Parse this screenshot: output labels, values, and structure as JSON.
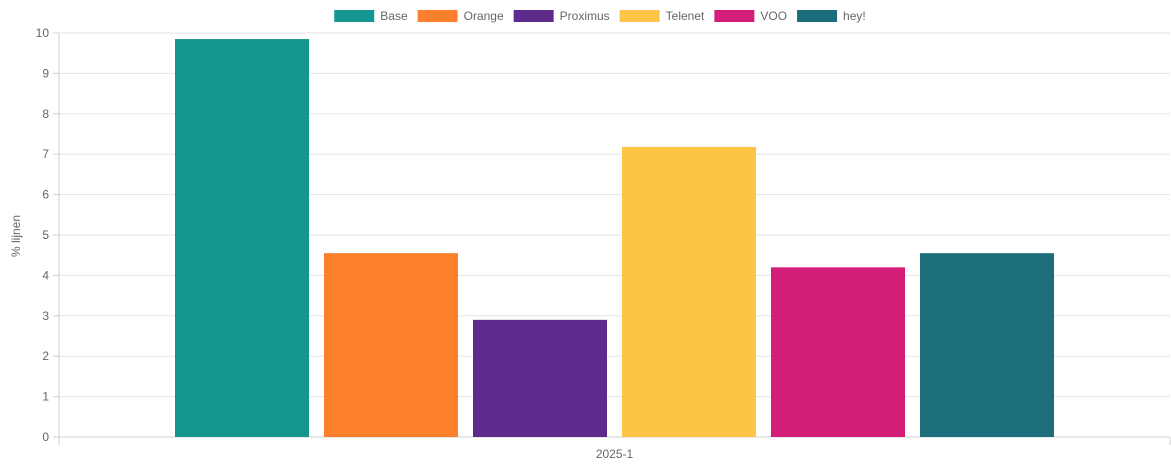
{
  "chart_data": {
    "type": "bar",
    "categories": [
      "2025-1"
    ],
    "series": [
      {
        "name": "Base",
        "values": [
          9.85
        ],
        "color": "#14958f"
      },
      {
        "name": "Orange",
        "values": [
          4.55
        ],
        "color": "#fd7f2c"
      },
      {
        "name": "Proximus",
        "values": [
          2.9
        ],
        "color": "#5e2a8c"
      },
      {
        "name": "Telenet",
        "values": [
          7.18
        ],
        "color": "#fcc546"
      },
      {
        "name": "VOO",
        "values": [
          4.2
        ],
        "color": "#d41e78"
      },
      {
        "name": "hey!",
        "values": [
          4.55
        ],
        "color": "#1d6e7b"
      }
    ],
    "xlabel": "",
    "ylabel": "% lijnen",
    "ylim": [
      0,
      10
    ],
    "yticks": [
      0,
      1,
      2,
      3,
      4,
      5,
      6,
      7,
      8,
      9,
      10
    ],
    "grid": true,
    "legend_position": "top"
  }
}
